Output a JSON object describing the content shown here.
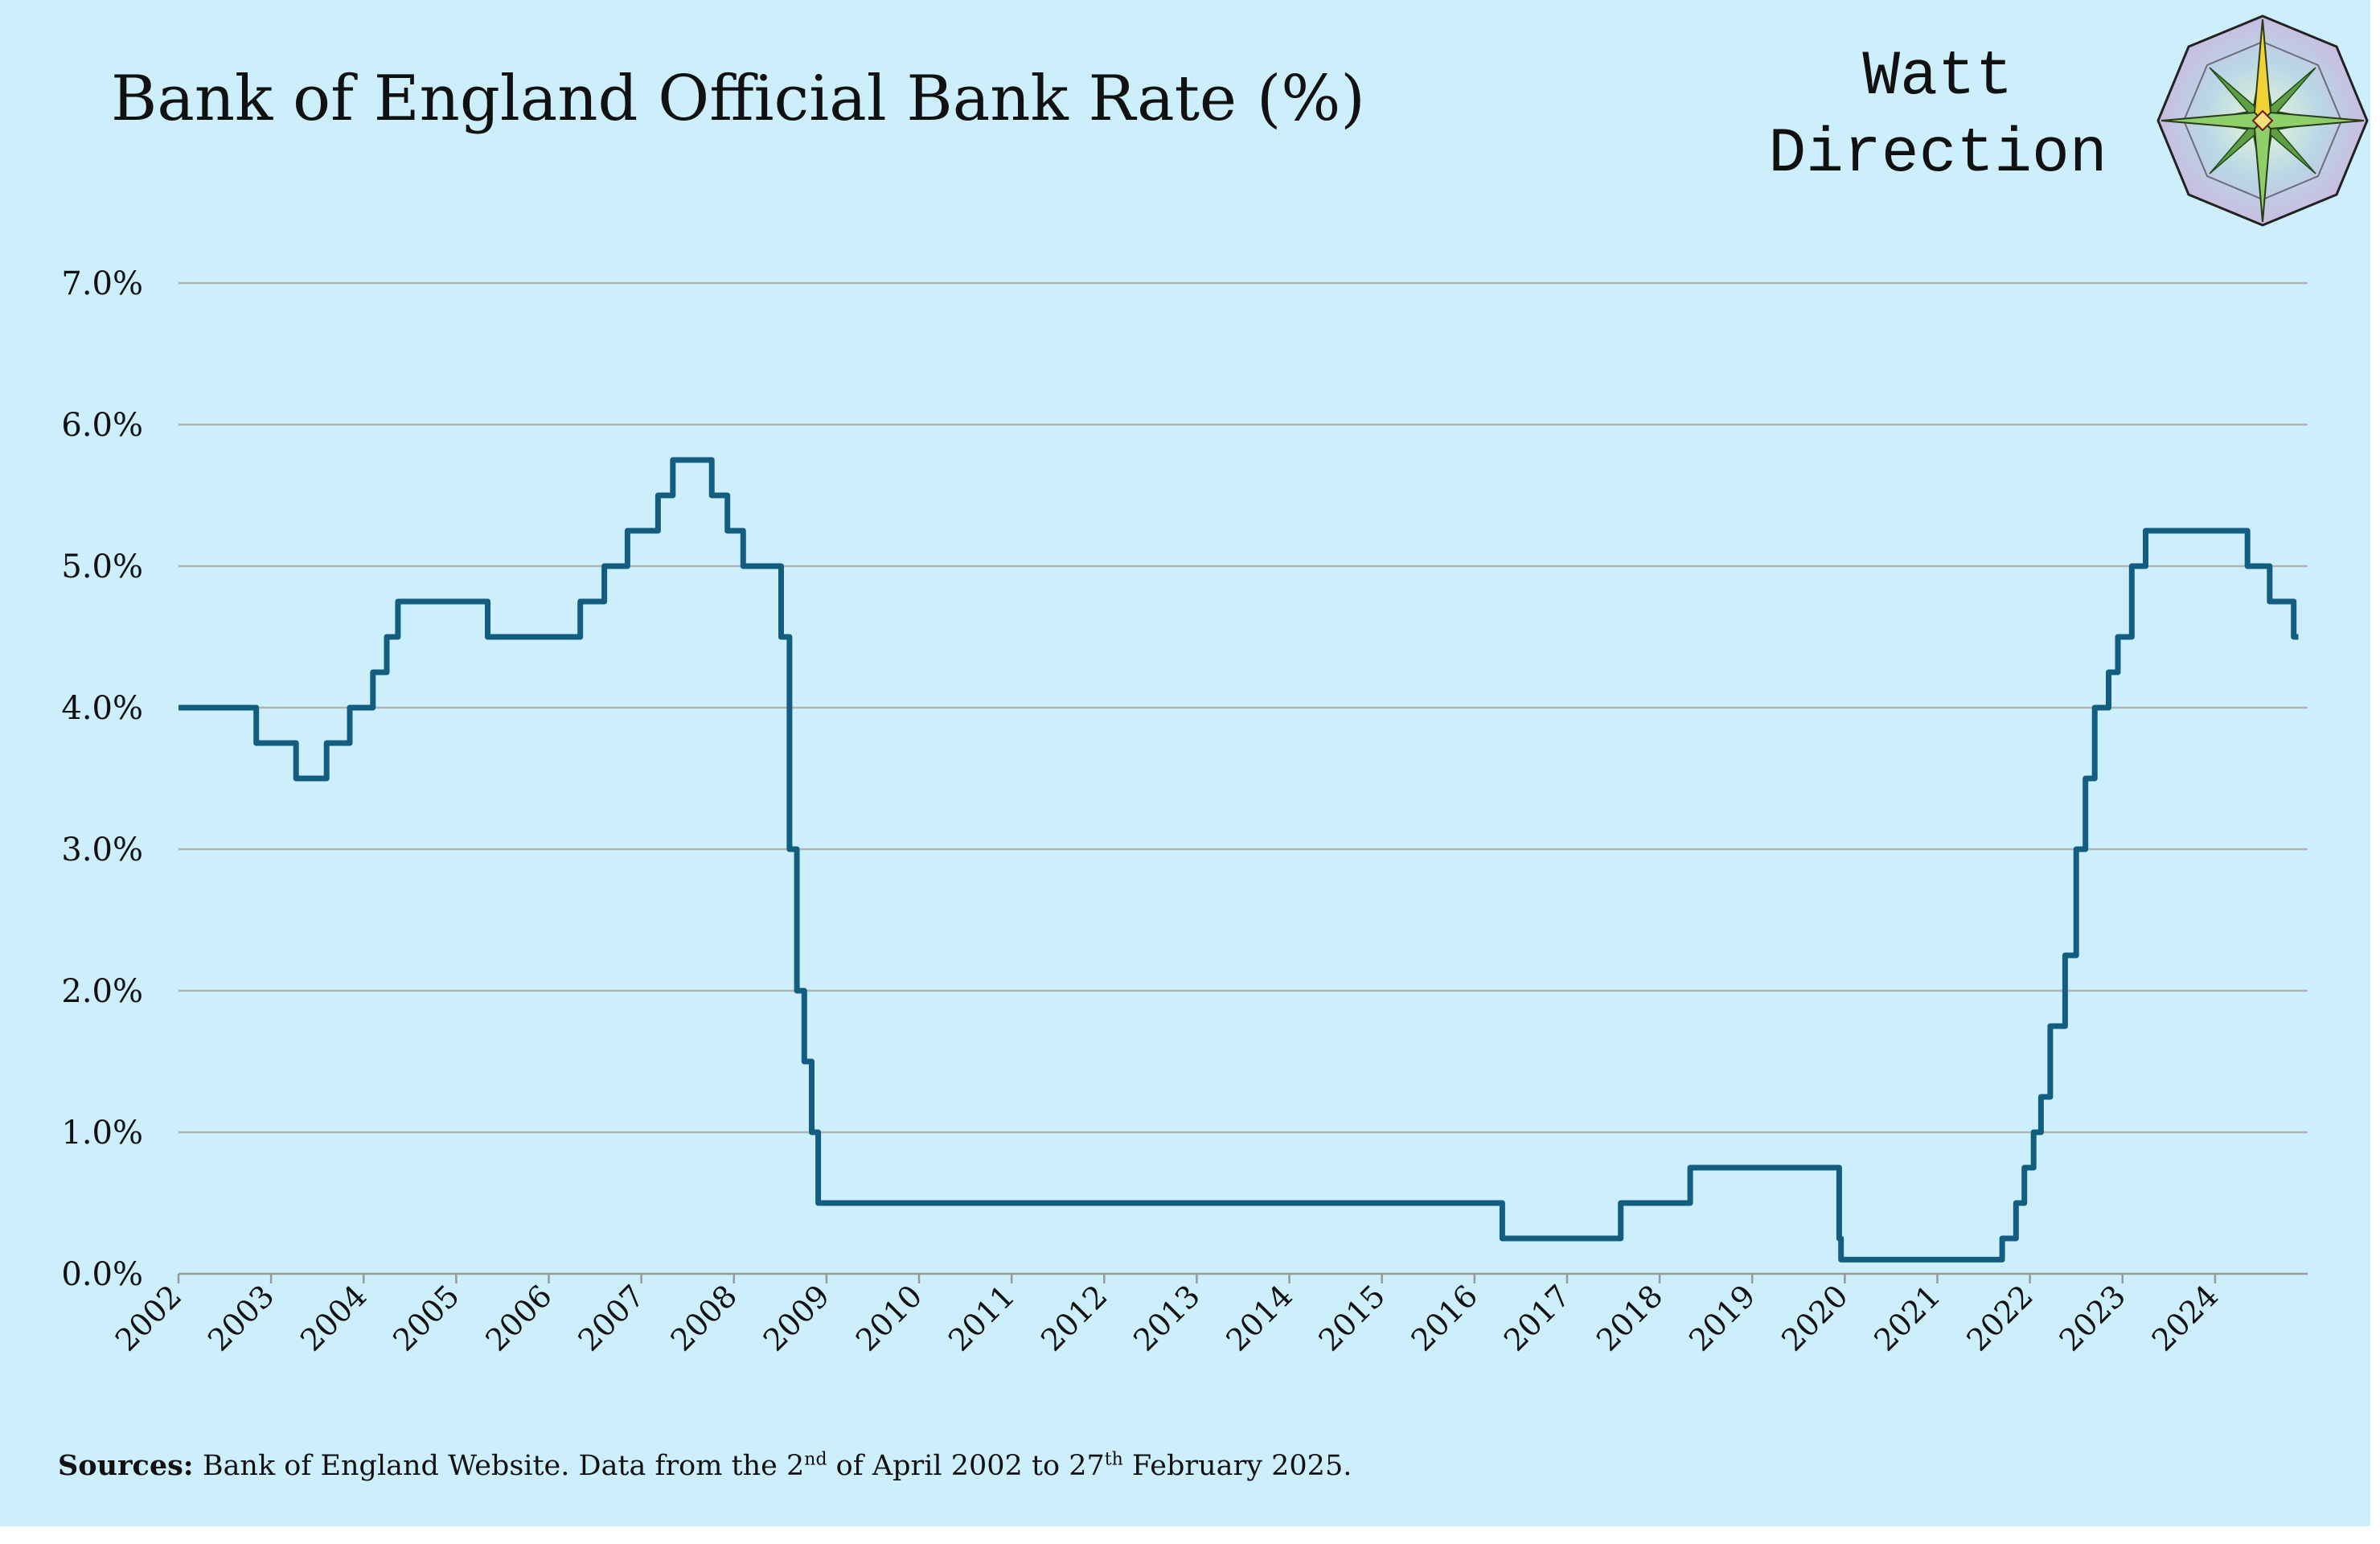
{
  "chart_data": {
    "type": "line",
    "title": "Bank of England Official Bank Rate (%)",
    "xlabel": "",
    "ylabel": "",
    "ylim": [
      0,
      7
    ],
    "xlim": [
      2002,
      2025
    ],
    "y_ticks": [
      "0.0%",
      "1.0%",
      "2.0%",
      "3.0%",
      "4.0%",
      "5.0%",
      "6.0%",
      "7.0%"
    ],
    "x_ticks": [
      "2002",
      "2003",
      "2004",
      "2005",
      "2006",
      "2007",
      "2008",
      "2009",
      "2010",
      "2011",
      "2012",
      "2013",
      "2014",
      "2015",
      "2016",
      "2017",
      "2018",
      "2019",
      "2020",
      "2021",
      "2022",
      "2023",
      "2024"
    ],
    "grid": true,
    "step": true,
    "series": [
      {
        "color": "#135e80",
        "points": [
          [
            2002.0,
            4.0
          ],
          [
            2002.84,
            3.75
          ],
          [
            2003.27,
            3.5
          ],
          [
            2003.6,
            3.75
          ],
          [
            2003.85,
            4.0
          ],
          [
            2004.1,
            4.25
          ],
          [
            2004.25,
            4.5
          ],
          [
            2004.37,
            4.75
          ],
          [
            2005.34,
            4.5
          ],
          [
            2006.34,
            4.75
          ],
          [
            2006.6,
            5.0
          ],
          [
            2006.85,
            5.25
          ],
          [
            2007.18,
            5.5
          ],
          [
            2007.34,
            5.75
          ],
          [
            2007.76,
            5.5
          ],
          [
            2007.93,
            5.25
          ],
          [
            2008.1,
            5.0
          ],
          [
            2008.51,
            4.5
          ],
          [
            2008.6,
            3.0
          ],
          [
            2008.68,
            2.0
          ],
          [
            2008.76,
            1.5
          ],
          [
            2008.84,
            1.0
          ],
          [
            2008.91,
            0.5
          ],
          [
            2016.3,
            0.25
          ],
          [
            2017.58,
            0.5
          ],
          [
            2018.33,
            0.75
          ],
          [
            2019.94,
            0.25
          ],
          [
            2019.96,
            0.1
          ],
          [
            2021.7,
            0.25
          ],
          [
            2021.85,
            0.5
          ],
          [
            2021.94,
            0.75
          ],
          [
            2022.04,
            1.0
          ],
          [
            2022.12,
            1.25
          ],
          [
            2022.22,
            1.75
          ],
          [
            2022.38,
            2.25
          ],
          [
            2022.5,
            3.0
          ],
          [
            2022.6,
            3.5
          ],
          [
            2022.7,
            4.0
          ],
          [
            2022.85,
            4.25
          ],
          [
            2022.95,
            4.5
          ],
          [
            2023.1,
            5.0
          ],
          [
            2023.25,
            5.25
          ],
          [
            2024.35,
            5.0
          ],
          [
            2024.59,
            4.75
          ],
          [
            2024.85,
            4.5
          ],
          [
            2024.9,
            4.5
          ]
        ]
      }
    ]
  },
  "brand": {
    "line1": "Watt",
    "line2": "Direction",
    "logo_icon": "compass-rose-icon"
  },
  "sources": {
    "label": "Sources:",
    "t1": " Bank of England Website. Data from the 2",
    "s1": "nd",
    "t2": " of April 2002 to 27",
    "s2": "th",
    "t3": " February 2025."
  },
  "colors": {
    "background": "#cdeefb",
    "line": "#135e80",
    "grid": "#b3b3b3",
    "axis": "#999999"
  }
}
